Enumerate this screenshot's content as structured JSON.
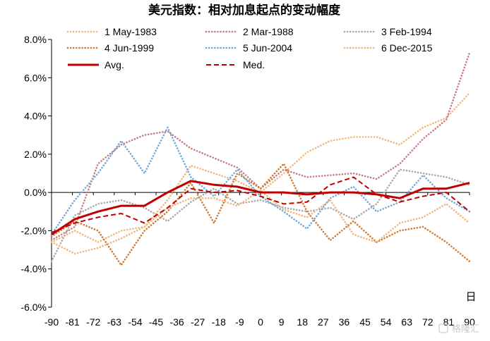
{
  "chart_data": {
    "type": "line",
    "title": "美元指数：相对加息起点的变动幅度",
    "x_unit_label": "日",
    "xlim": [
      -90,
      90
    ],
    "ylim": [
      -6.0,
      8.0
    ],
    "x_ticks": [
      -90,
      -81,
      -72,
      -63,
      -54,
      -45,
      -36,
      -27,
      -18,
      -9,
      0,
      9,
      18,
      27,
      36,
      45,
      54,
      63,
      72,
      81,
      90
    ],
    "y_ticks": [
      -6.0,
      -4.0,
      -2.0,
      0.0,
      2.0,
      4.0,
      6.0,
      8.0
    ],
    "y_tick_labels": [
      "-6.0%",
      "-4.0%",
      "-2.0%",
      "0.0%",
      "2.0%",
      "4.0%",
      "6.0%",
      "8.0%"
    ],
    "x": [
      -90,
      -80,
      -70,
      -60,
      -50,
      -40,
      -30,
      -20,
      -10,
      0,
      10,
      20,
      30,
      40,
      50,
      60,
      70,
      80,
      90
    ],
    "series": [
      {
        "name": "1 May-1983",
        "color": "#f2b77d",
        "style": "dotted",
        "values": [
          -2.6,
          -2.0,
          -2.6,
          -2.0,
          -1.8,
          -0.4,
          1.4,
          1.0,
          0.6,
          0.0,
          1.0,
          2.1,
          2.7,
          2.9,
          2.9,
          2.5,
          3.4,
          3.9,
          5.2
        ]
      },
      {
        "name": "2 Mar-1988",
        "color": "#c97b86",
        "style": "dotted",
        "values": [
          -2.5,
          -1.8,
          1.5,
          2.5,
          3.0,
          3.2,
          2.3,
          1.8,
          1.3,
          0.2,
          1.2,
          0.8,
          0.9,
          1.0,
          0.7,
          1.5,
          2.8,
          3.8,
          7.3
        ]
      },
      {
        "name": "3 Feb-1994",
        "color": "#aaaaaa",
        "style": "dotted",
        "values": [
          -3.6,
          -1.2,
          -0.6,
          -0.4,
          -0.8,
          -1.5,
          -0.5,
          0.2,
          -0.6,
          -0.4,
          -0.8,
          -1.0,
          -0.8,
          -1.4,
          -0.6,
          1.2,
          1.0,
          0.8,
          0.4
        ]
      },
      {
        "name": "4 Jun-1999",
        "color": "#d17a33",
        "style": "dotted",
        "values": [
          -2.3,
          -1.5,
          -2.0,
          -3.8,
          -2.0,
          -1.0,
          0.5,
          -1.6,
          1.0,
          0.2,
          1.5,
          -1.0,
          -2.5,
          -1.5,
          -2.6,
          -2.0,
          -1.8,
          -2.6,
          -3.6
        ]
      },
      {
        "name": "5 Jun-2004",
        "color": "#74a9d8",
        "style": "dotted",
        "values": [
          -2.2,
          -0.4,
          1.0,
          2.7,
          1.0,
          3.4,
          0.8,
          -0.2,
          1.2,
          -0.2,
          -1.0,
          -1.9,
          -0.3,
          0.3,
          -1.0,
          -0.5,
          0.9,
          -0.3,
          -1.0
        ]
      },
      {
        "name": "6 Dec-2015",
        "color": "#f2b77d",
        "style": "dotted",
        "values": [
          -2.6,
          -3.2,
          -2.9,
          -2.4,
          -1.8,
          -0.8,
          -0.3,
          -0.3,
          -0.7,
          0.1,
          -0.9,
          -1.3,
          -0.4,
          -2.2,
          -2.6,
          -1.6,
          -1.3,
          -0.6,
          -1.6
        ]
      },
      {
        "name": "Avg.",
        "color": "#c00000",
        "style": "solid",
        "values": [
          -2.2,
          -1.4,
          -1.0,
          -0.7,
          -0.7,
          0.0,
          0.6,
          0.4,
          0.3,
          0.0,
          0.0,
          -0.1,
          0.0,
          0.0,
          -0.1,
          -0.3,
          0.2,
          0.2,
          0.5
        ]
      },
      {
        "name": "Med.",
        "color": "#c00000",
        "style": "dashed",
        "values": [
          -2.1,
          -1.6,
          -1.3,
          -1.1,
          -1.6,
          -0.8,
          0.2,
          0.0,
          0.1,
          -0.2,
          -0.6,
          -0.5,
          0.4,
          0.8,
          -0.1,
          -0.5,
          -0.2,
          0.0,
          -1.0
        ]
      }
    ],
    "grid": false,
    "legend_position": "top",
    "watermark": "格隆汇"
  }
}
